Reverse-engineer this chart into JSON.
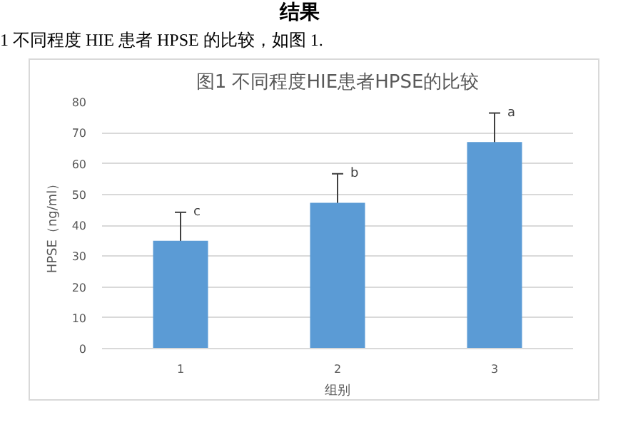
{
  "chart_data": {
    "type": "bar",
    "title": "图1 不同程度HIE患者HPSE的比较",
    "xlabel": "组别",
    "ylabel": "HPSE（ng/ml）",
    "categories": [
      "1",
      "2",
      "3"
    ],
    "values": [
      35,
      47.3,
      67
    ],
    "errors": [
      9.2,
      9.4,
      9.4
    ],
    "color": "#5b9bd5",
    "ylim": [
      0,
      80
    ],
    "yticks": [
      0,
      10,
      20,
      30,
      40,
      50,
      60,
      70,
      80
    ],
    "grid": "y",
    "annotations": [
      "结果",
      "1 不同程度 HIE 患者 HPSE 的比较，如图 1.",
      "c",
      "b",
      "a"
    ]
  }
}
